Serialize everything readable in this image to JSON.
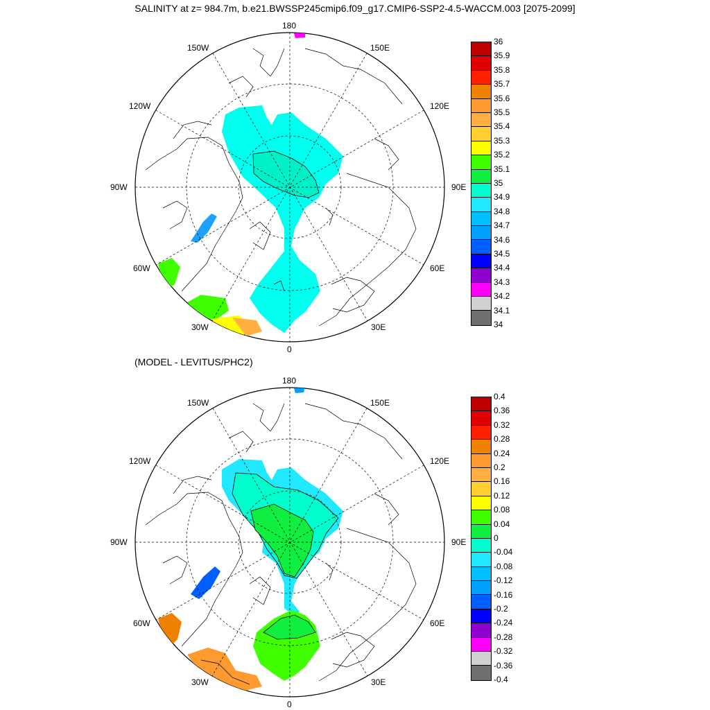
{
  "title": "SALINITY at z= 984.7m, b.e21.BWSSP245cmip6.f09_g17.CMIP6-SSP2-4.5-WACCM.003 [2075-2099]",
  "subtitle": "(MODEL - LEVITUS/PHC2)",
  "lon_labels": {
    "n180": "180",
    "n150w": "150W",
    "n150e": "150E",
    "n120w": "120W",
    "n120e": "120E",
    "n90w": "90W",
    "n90e": "90E",
    "n60w": "60W",
    "n60e": "60E",
    "n30w": "30W",
    "n30e": "30E",
    "n0": "0"
  },
  "colorbar_top": {
    "labels": [
      "36",
      "35.9",
      "35.8",
      "35.7",
      "35.6",
      "35.5",
      "35.4",
      "35.3",
      "35.2",
      "35.1",
      "35",
      "34.9",
      "34.8",
      "34.7",
      "34.6",
      "34.5",
      "34.4",
      "34.3",
      "34.2",
      "34.1",
      "34"
    ],
    "colors": [
      "#c00000",
      "#e00000",
      "#ff2000",
      "#f08000",
      "#ff9a30",
      "#ffb040",
      "#ffd030",
      "#ffff00",
      "#40ff00",
      "#10ee40",
      "#00ffcc",
      "#20e8ff",
      "#00c0ff",
      "#00a0ff",
      "#0060ff",
      "#0000ff",
      "#9000d0",
      "#ff00ff",
      "#d0d0d0",
      "#707070"
    ]
  },
  "colorbar_bottom": {
    "labels": [
      "0.4",
      "0.36",
      "0.32",
      "0.28",
      "0.24",
      "0.2",
      "0.16",
      "0.12",
      "0.08",
      "0.04",
      "0",
      "-0.04",
      "-0.08",
      "-0.12",
      "-0.16",
      "-0.2",
      "-0.24",
      "-0.28",
      "-0.32",
      "-0.36",
      "-0.4"
    ],
    "colors": [
      "#c00000",
      "#e00000",
      "#ff2000",
      "#f08000",
      "#ff9a30",
      "#ffb040",
      "#ffd030",
      "#ffff00",
      "#40ff00",
      "#10ee40",
      "#00ffcc",
      "#20e8ff",
      "#00c0ff",
      "#00a0ff",
      "#0060ff",
      "#0000ff",
      "#9000d0",
      "#ff00ff",
      "#d0d0d0",
      "#707070"
    ]
  },
  "field_colors": {
    "top_main": "#00ffee",
    "top_inner": "#00f0c8",
    "top_blue": "#1ea0ff",
    "top_green": "#40ff00",
    "top_yellow": "#ffff00",
    "top_orange": "#ffb040",
    "top_magenta": "#ff00ff",
    "bot_main": "#20e8ff",
    "bot_inner": "#00ffcc",
    "bot_green": "#10ee40",
    "bot_lime": "#40ff00",
    "bot_blue": "#0060ff",
    "bot_orange": "#ff9a30",
    "bot_orange2": "#f08000",
    "bot_blue_top": "#00a0ff"
  }
}
